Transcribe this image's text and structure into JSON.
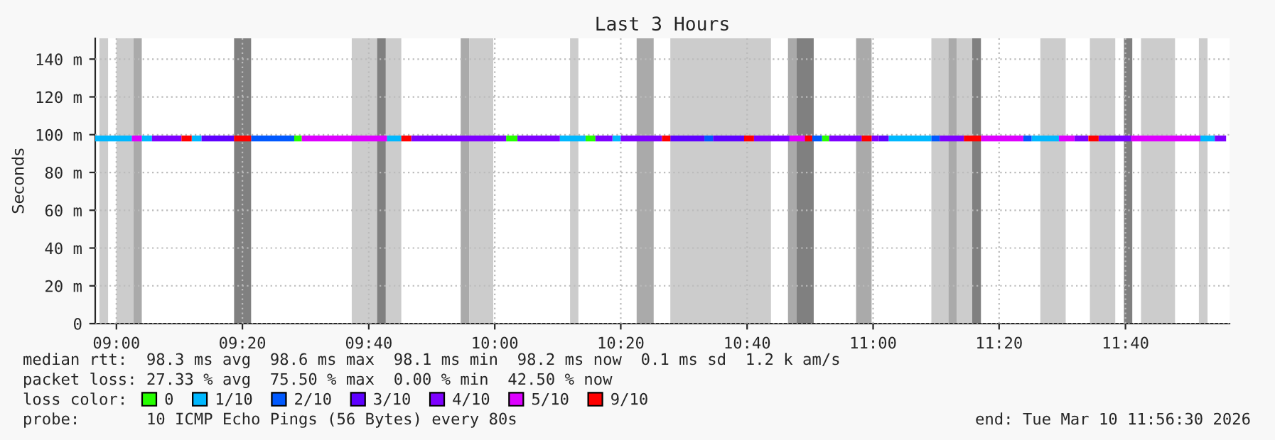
{
  "chart_data": {
    "type": "line",
    "title": "Last 3 Hours",
    "ylabel": "Seconds",
    "legend_title": "loss color:",
    "xlim": [
      8.944,
      11.942
    ],
    "ylim": [
      0,
      151
    ],
    "xticks": [
      {
        "value": 9.0,
        "label": "09:00"
      },
      {
        "value": 9.333,
        "label": "09:20"
      },
      {
        "value": 9.667,
        "label": "09:40"
      },
      {
        "value": 10.0,
        "label": "10:00"
      },
      {
        "value": 10.333,
        "label": "10:20"
      },
      {
        "value": 10.667,
        "label": "10:40"
      },
      {
        "value": 11.0,
        "label": "11:00"
      },
      {
        "value": 11.333,
        "label": "11:20"
      },
      {
        "value": 11.667,
        "label": "11:40"
      }
    ],
    "yticks": [
      0,
      {
        "value": 20,
        "label": "20 m"
      },
      {
        "value": 40,
        "label": "40 m"
      },
      {
        "value": 60,
        "label": "60 m"
      },
      {
        "value": 80,
        "label": "80 m"
      },
      {
        "value": 100,
        "label": "100 m"
      },
      {
        "value": 120,
        "label": "120 m"
      },
      {
        "value": 140,
        "label": "140 m"
      }
    ],
    "grid": true,
    "legend": "bottom",
    "series": [
      {
        "name": "0",
        "color": "#26ff00",
        "x": [
          9.47,
          9.49,
          null,
          10.03,
          10.06,
          null,
          10.24,
          10.266,
          null,
          10.865,
          10.884
        ],
        "values": [
          98,
          98,
          null,
          98,
          98,
          null,
          98,
          98,
          null,
          98,
          98
        ]
      },
      {
        "name": "1/10",
        "color": "#00b8ff",
        "x": [
          8.944,
          9.041,
          null,
          9.067,
          9.094,
          null,
          9.199,
          9.225,
          null,
          9.715,
          9.753,
          null,
          10.172,
          10.24,
          null,
          10.311,
          10.333,
          null,
          11.041,
          11.154,
          null,
          11.419,
          11.491,
          null,
          11.865,
          11.903
        ],
        "values": [
          98,
          98,
          null,
          98,
          98,
          null,
          98,
          98,
          null,
          98,
          98,
          null,
          98,
          98,
          null,
          98,
          98,
          null,
          98,
          98,
          null,
          98,
          98,
          null,
          98,
          98
        ]
      },
      {
        "name": "2/10",
        "color": "#0059ff",
        "x": [
          9.356,
          9.47,
          null,
          10.554,
          10.577,
          null,
          10.839,
          10.865,
          null,
          11.154,
          11.176,
          null,
          11.397,
          11.419
        ],
        "values": [
          98,
          98,
          null,
          98,
          98,
          null,
          98,
          98,
          null,
          98,
          98,
          null,
          98,
          98
        ]
      },
      {
        "name": "3/10",
        "color": "#5e00ff",
        "x": [
          9.225,
          9.311,
          null,
          10.464,
          10.554,
          null,
          10.577,
          10.659,
          null,
          11.015,
          11.041
        ],
        "values": [
          98,
          98,
          null,
          98,
          98,
          null,
          98,
          98,
          null,
          98,
          98
        ]
      },
      {
        "name": "4/10",
        "color": "#7e00ff",
        "x": [
          9.094,
          9.172,
          null,
          9.779,
          10.03,
          null,
          10.06,
          10.172,
          null,
          10.266,
          10.311,
          null,
          10.333,
          10.442,
          null,
          10.685,
          10.779,
          null,
          10.884,
          10.97,
          null,
          10.996,
          11.015,
          null,
          11.176,
          11.24,
          null,
          11.532,
          11.569,
          null,
          11.596,
          11.682,
          null,
          11.903,
          11.933
        ],
        "values": [
          98,
          98,
          null,
          98,
          98,
          null,
          98,
          98,
          null,
          98,
          98,
          null,
          98,
          98,
          null,
          98,
          98,
          null,
          98,
          98,
          null,
          98,
          98,
          null,
          98,
          98,
          null,
          98,
          98,
          null,
          98,
          98,
          null,
          98,
          98
        ]
      },
      {
        "name": "5/10",
        "color": "#dd00ff",
        "x": [
          9.041,
          9.067,
          null,
          9.49,
          9.715,
          null,
          10.779,
          10.82,
          null,
          11.285,
          11.397,
          null,
          11.491,
          11.532,
          null,
          11.682,
          11.865
        ],
        "values": [
          98,
          98,
          null,
          98,
          98,
          null,
          98,
          98,
          null,
          98,
          98,
          null,
          98,
          98,
          null,
          98,
          98
        ]
      },
      {
        "name": "9/10",
        "color": "#ff0000",
        "x": [
          9.172,
          9.199,
          null,
          9.311,
          9.356,
          null,
          9.753,
          9.779,
          null,
          10.442,
          10.464,
          null,
          10.659,
          10.685,
          null,
          10.82,
          10.839,
          null,
          10.97,
          10.996,
          null,
          11.24,
          11.285,
          null,
          11.569,
          11.596
        ],
        "values": [
          98,
          98,
          null,
          98,
          98,
          null,
          98,
          98,
          null,
          98,
          98,
          null,
          98,
          98,
          null,
          98,
          98,
          null,
          98,
          98,
          null,
          98,
          98,
          null,
          98,
          98
        ]
      }
    ],
    "bands": [
      {
        "axis": "x",
        "from": 8.955,
        "to": 8.978,
        "color": "#cccccc"
      },
      {
        "axis": "x",
        "from": 9.0,
        "to": 9.045,
        "color": "#cccccc"
      },
      {
        "axis": "x",
        "from": 9.045,
        "to": 9.067,
        "color": "#aaaaaa"
      },
      {
        "axis": "x",
        "from": 9.311,
        "to": 9.356,
        "color": "#808080"
      },
      {
        "axis": "x",
        "from": 9.622,
        "to": 9.689,
        "color": "#cccccc"
      },
      {
        "axis": "x",
        "from": 9.689,
        "to": 9.712,
        "color": "#808080"
      },
      {
        "axis": "x",
        "from": 9.712,
        "to": 9.753,
        "color": "#cccccc"
      },
      {
        "axis": "x",
        "from": 9.91,
        "to": 9.933,
        "color": "#aaaaaa"
      },
      {
        "axis": "x",
        "from": 9.933,
        "to": 9.996,
        "color": "#cccccc"
      },
      {
        "axis": "x",
        "from": 10.199,
        "to": 10.221,
        "color": "#cccccc"
      },
      {
        "axis": "x",
        "from": 10.375,
        "to": 10.42,
        "color": "#aaaaaa"
      },
      {
        "axis": "x",
        "from": 10.464,
        "to": 10.73,
        "color": "#cccccc"
      },
      {
        "axis": "x",
        "from": 10.775,
        "to": 10.798,
        "color": "#aaaaaa"
      },
      {
        "axis": "x",
        "from": 10.798,
        "to": 10.843,
        "color": "#808080"
      },
      {
        "axis": "x",
        "from": 10.955,
        "to": 10.996,
        "color": "#aaaaaa"
      },
      {
        "axis": "x",
        "from": 11.154,
        "to": 11.199,
        "color": "#cccccc"
      },
      {
        "axis": "x",
        "from": 11.199,
        "to": 11.221,
        "color": "#aaaaaa"
      },
      {
        "axis": "x",
        "from": 11.221,
        "to": 11.262,
        "color": "#cccccc"
      },
      {
        "axis": "x",
        "from": 11.262,
        "to": 11.285,
        "color": "#808080"
      },
      {
        "axis": "x",
        "from": 11.442,
        "to": 11.509,
        "color": "#cccccc"
      },
      {
        "axis": "x",
        "from": 11.573,
        "to": 11.64,
        "color": "#cccccc"
      },
      {
        "axis": "x",
        "from": 11.663,
        "to": 11.685,
        "color": "#808080"
      },
      {
        "axis": "x",
        "from": 11.708,
        "to": 11.798,
        "color": "#cccccc"
      },
      {
        "axis": "x",
        "from": 11.861,
        "to": 11.884,
        "color": "#cccccc"
      }
    ],
    "annotations": [
      "median rtt:  98.3 ms avg  98.6 ms max  98.1 ms min  98.2 ms now  0.1 ms sd  1.2 k am/s",
      "packet loss: 27.33 % avg  75.50 % max  0.00 % min  42.50 % now",
      "probe:       10 ICMP Echo Pings (56 Bytes) every 80s",
      "end: Tue Mar 10 11:56:30 2026"
    ]
  }
}
